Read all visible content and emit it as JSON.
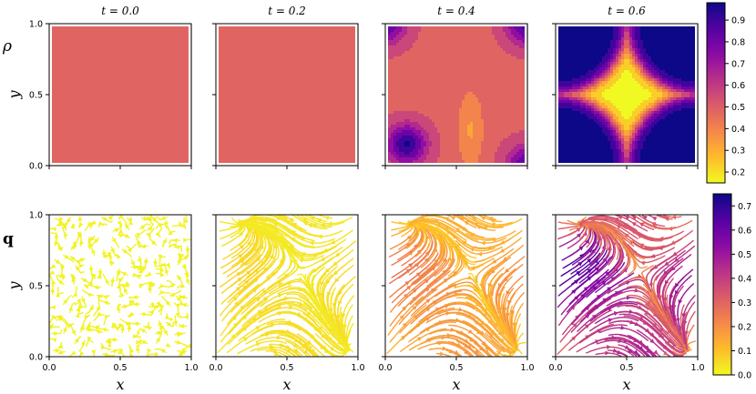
{
  "chart_data": [
    {
      "type": "heatmap",
      "row_label": "ρ",
      "variable": "rho",
      "panels": [
        {
          "title_var": "t",
          "title_eq": " = ",
          "title_value": "0.0"
        },
        {
          "title_var": "t",
          "title_eq": " = ",
          "title_value": "0.2"
        },
        {
          "title_var": "t",
          "title_eq": " = ",
          "title_value": "0.4"
        },
        {
          "title_var": "t",
          "title_eq": " = ",
          "title_value": "0.6"
        }
      ],
      "ylabel": "y",
      "yticks": [
        "0.0",
        "0.5",
        "1.0"
      ],
      "xlim": [
        0,
        1
      ],
      "ylim": [
        0,
        1
      ],
      "colormap": "plasma_r",
      "colorbar": {
        "range": [
          0.15,
          0.98
        ],
        "ticks": [
          "0.2",
          "0.3",
          "0.4",
          "0.5",
          "0.6",
          "0.7",
          "0.8",
          "0.9"
        ]
      },
      "fields": [
        {
          "background": 0.5,
          "features": []
        },
        {
          "background": 0.5,
          "features": []
        },
        {
          "background": 0.5,
          "features": [
            {
              "x": 0.15,
              "y": 0.15,
              "value": 0.95,
              "kind": "peak"
            },
            {
              "x": 0.6,
              "y": 0.25,
              "value": 0.35,
              "kind": "lobe"
            },
            {
              "x": 0.0,
              "y": 1.0,
              "value": 0.85,
              "kind": "corner"
            },
            {
              "x": 1.0,
              "y": 1.0,
              "value": 0.9,
              "kind": "corner"
            },
            {
              "x": 1.0,
              "y": 0.0,
              "value": 0.85,
              "kind": "corner"
            }
          ]
        },
        {
          "background": 0.15,
          "features": [
            {
              "x": 0.0,
              "y": 1.0,
              "value": 0.98,
              "kind": "corner"
            },
            {
              "x": 1.0,
              "y": 1.0,
              "value": 0.98,
              "kind": "corner"
            },
            {
              "x": 0.0,
              "y": 0.0,
              "value": 0.98,
              "kind": "corner"
            },
            {
              "x": 1.0,
              "y": 0.0,
              "value": 0.98,
              "kind": "corner"
            }
          ]
        }
      ]
    },
    {
      "type": "streamplot",
      "row_label": "q",
      "variable": "q",
      "panels": [
        {
          "title_value": "0.0",
          "max_speed": 0.02,
          "pattern": "random"
        },
        {
          "title_value": "0.2",
          "max_speed": 0.08,
          "pattern": "saddle"
        },
        {
          "title_value": "0.4",
          "max_speed": 0.3,
          "pattern": "saddle"
        },
        {
          "title_value": "0.6",
          "max_speed": 0.75,
          "pattern": "saddle"
        }
      ],
      "xlabel": "x",
      "ylabel": "y",
      "xticks": [
        "0.0",
        "0.5",
        "1.0"
      ],
      "yticks": [
        "0.0",
        "0.5",
        "1.0"
      ],
      "xlim": [
        0,
        1
      ],
      "ylim": [
        0,
        1
      ],
      "colormap": "plasma_r",
      "colorbar": {
        "range": [
          0,
          0.75
        ],
        "ticks": [
          "0.0",
          "0.1",
          "0.2",
          "0.3",
          "0.4",
          "0.5",
          "0.6",
          "0.7"
        ]
      }
    }
  ]
}
